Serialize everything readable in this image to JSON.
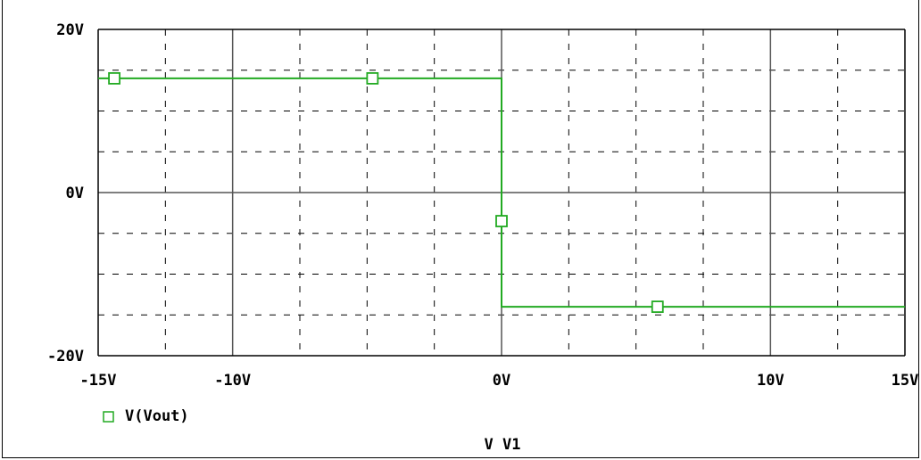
{
  "chart_data": {
    "type": "line",
    "xlabel": "V V1",
    "x_ticks": [
      "-15V",
      "-10V",
      "0V",
      "10V",
      "15V"
    ],
    "x_tick_values": [
      -15,
      -10,
      0,
      10,
      15
    ],
    "y_ticks": [
      "20V",
      "0V",
      "-20V"
    ],
    "y_tick_values": [
      20,
      0,
      -20
    ],
    "xlim": [
      -15,
      15
    ],
    "ylim": [
      -20,
      20
    ],
    "grid": true,
    "legend_position": "bottom-left",
    "series": [
      {
        "name": "V(Vout)",
        "color": "#22aa22",
        "x": [
          -15,
          0,
          0,
          15
        ],
        "y": [
          14,
          14,
          -14,
          -14
        ],
        "markers": [
          {
            "x": -14.4,
            "y": 14
          },
          {
            "x": -4.8,
            "y": 14
          },
          {
            "x": 0,
            "y": -3.5
          },
          {
            "x": 5.8,
            "y": -14
          }
        ]
      }
    ]
  }
}
